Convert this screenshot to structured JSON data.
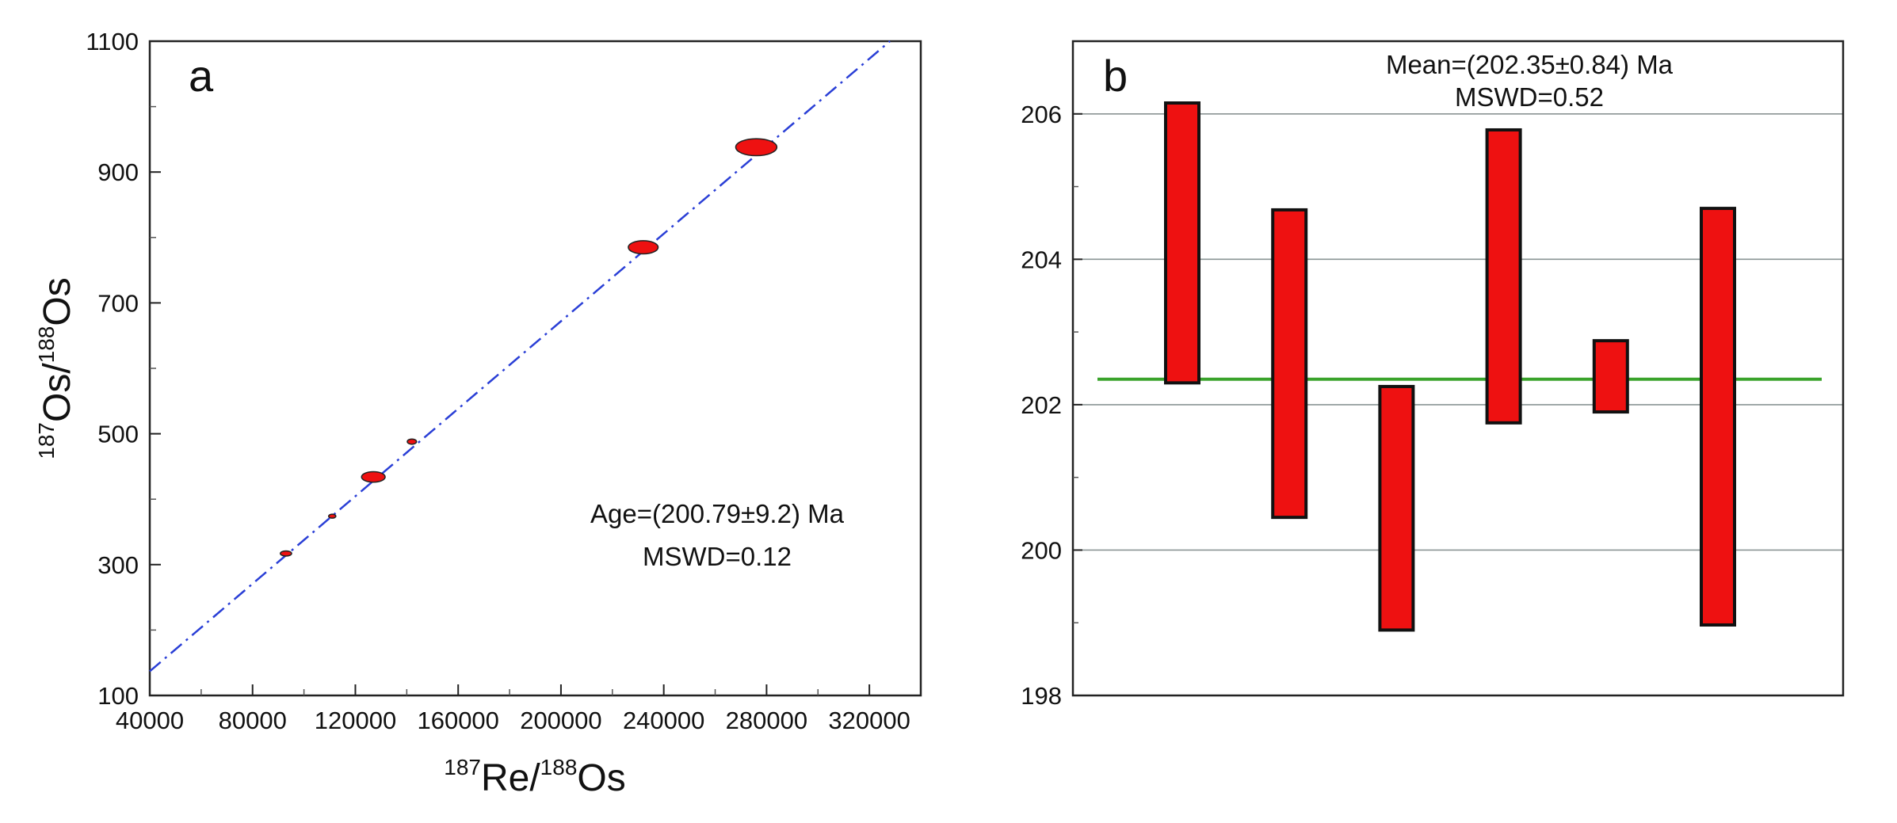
{
  "chart_data": [
    {
      "panel": "a",
      "type": "scatter",
      "panel_label": "a",
      "xlabel": {
        "sup1": "187",
        "main1": "Re/",
        "sup2": "188",
        "main2": "Os"
      },
      "ylabel": {
        "sup1": "187",
        "main1": "Os/",
        "sup2": "188",
        "main2": "Os"
      },
      "xlim": [
        40000,
        340000
      ],
      "ylim": [
        100,
        1100
      ],
      "xticks": [
        40000,
        80000,
        120000,
        160000,
        200000,
        240000,
        280000,
        320000
      ],
      "xticks_minor": [
        60000,
        100000,
        140000,
        180000,
        220000,
        260000,
        300000
      ],
      "yticks": [
        100,
        300,
        500,
        700,
        900,
        1100
      ],
      "yticks_minor": [
        200,
        400,
        600,
        800,
        1000
      ],
      "points": [
        {
          "x": 93000,
          "y": 317,
          "rx": 2200,
          "ry": 4
        },
        {
          "x": 111000,
          "y": 374,
          "rx": 1400,
          "ry": 3
        },
        {
          "x": 127000,
          "y": 434,
          "rx": 4600,
          "ry": 8
        },
        {
          "x": 142000,
          "y": 488,
          "rx": 1800,
          "ry": 4
        },
        {
          "x": 232000,
          "y": 785,
          "rx": 5800,
          "ry": 10
        },
        {
          "x": 276000,
          "y": 938,
          "rx": 8000,
          "ry": 13
        }
      ],
      "isochron": {
        "x1": 40000,
        "y1": 137,
        "x2": 328000,
        "y2": 1100,
        "color": "#2a3fd6",
        "style": "dash-dot"
      },
      "annotations": [
        "Age=(200.79±9.2) Ma",
        "MSWD=0.12"
      ],
      "marker_color": "#ee1111"
    },
    {
      "panel": "b",
      "type": "bar",
      "panel_label": "b",
      "ylim": [
        198,
        207
      ],
      "yticks": [
        198,
        200,
        202,
        204,
        206
      ],
      "yticks_minor": [
        199,
        201,
        203,
        205
      ],
      "gridlines": [
        200,
        202,
        204,
        206
      ],
      "bars": [
        {
          "low": 202.3,
          "high": 206.15
        },
        {
          "low": 200.45,
          "high": 204.68
        },
        {
          "low": 198.9,
          "high": 202.25
        },
        {
          "low": 201.75,
          "high": 205.78
        },
        {
          "low": 201.9,
          "high": 202.88
        },
        {
          "low": 198.97,
          "high": 204.7
        }
      ],
      "mean_line": 202.35,
      "mean_color": "#3aa32c",
      "bar_color": "#ee1111",
      "annotations": [
        "Mean=(202.35±0.84) Ma",
        "MSWD=0.52"
      ]
    }
  ]
}
